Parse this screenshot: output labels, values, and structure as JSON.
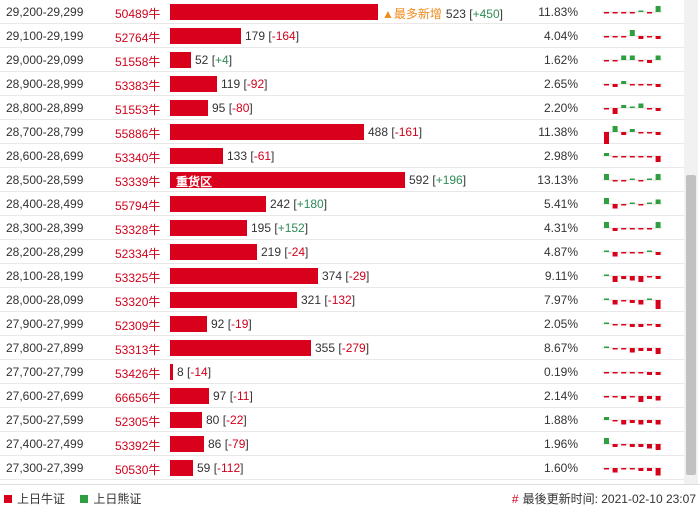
{
  "rows": [
    {
      "range": "29,200-29,299",
      "code": "50489牛",
      "vol": 523,
      "chg": "+450",
      "pct": "11.83%",
      "tag": "▲最多新增",
      "spark": [
        0,
        0,
        0,
        -1,
        1,
        -1,
        4
      ]
    },
    {
      "range": "29,100-29,199",
      "code": "52764牛",
      "vol": 179,
      "chg": "-164",
      "pct": "4.04%",
      "spark": [
        0,
        0,
        -1,
        4,
        -2,
        -1,
        -2
      ]
    },
    {
      "range": "29,000-29,099",
      "code": "51558牛",
      "vol": 52,
      "chg": "+4",
      "pct": "1.62%",
      "spark": [
        0,
        -1,
        3,
        3,
        0,
        -2,
        3
      ]
    },
    {
      "range": "28,900-28,999",
      "code": "53383牛",
      "vol": 119,
      "chg": "-92",
      "pct": "2.65%",
      "spark": [
        0,
        -2,
        2,
        0,
        0,
        0,
        -2
      ]
    },
    {
      "range": "28,800-28,899",
      "code": "51553牛",
      "vol": 95,
      "chg": "-80",
      "pct": "2.20%",
      "spark": [
        0,
        -4,
        2,
        1,
        3,
        0,
        -2
      ]
    },
    {
      "range": "28,700-28,799",
      "code": "55886牛",
      "vol": 488,
      "chg": "-161",
      "pct": "11.38%",
      "spark": [
        -8,
        4,
        -2,
        2,
        0,
        -1,
        -2
      ]
    },
    {
      "range": "28,600-28,699",
      "code": "53340牛",
      "vol": 133,
      "chg": "-61",
      "pct": "2.98%",
      "spark": [
        2,
        -1,
        0,
        0,
        -1,
        -1,
        -4
      ]
    },
    {
      "range": "28,500-28,599",
      "code": "53339牛",
      "vol": 592,
      "chg": "+196",
      "pct": "13.13%",
      "area": "重货区",
      "spark": [
        4,
        -1,
        0,
        1,
        -1,
        1,
        4
      ]
    },
    {
      "range": "28,400-28,499",
      "code": "55794牛",
      "vol": 242,
      "chg": "+180",
      "pct": "5.41%",
      "spark": [
        4,
        -3,
        0,
        1,
        0,
        1,
        3
      ]
    },
    {
      "range": "28,300-28,399",
      "code": "53328牛",
      "vol": 195,
      "chg": "+152",
      "pct": "4.31%",
      "spark": [
        4,
        -2,
        -1,
        0,
        -1,
        -1,
        4
      ]
    },
    {
      "range": "28,200-28,299",
      "code": "52334牛",
      "vol": 219,
      "chg": "-24",
      "pct": "4.87%",
      "spark": [
        1,
        -3,
        -1,
        -1,
        -1,
        1,
        -2
      ]
    },
    {
      "range": "28,100-28,199",
      "code": "53325牛",
      "vol": 374,
      "chg": "-29",
      "pct": "9.11%",
      "spark": [
        1,
        -4,
        -2,
        -3,
        -4,
        -1,
        -2
      ]
    },
    {
      "range": "28,000-28,099",
      "code": "53320牛",
      "vol": 321,
      "chg": "-132",
      "pct": "7.97%",
      "spark": [
        1,
        -3,
        -1,
        -2,
        -3,
        1,
        -6
      ]
    },
    {
      "range": "27,900-27,999",
      "code": "52309牛",
      "vol": 92,
      "chg": "-19",
      "pct": "2.05%",
      "spark": [
        1,
        -1,
        -1,
        -2,
        -2,
        -1,
        -2
      ]
    },
    {
      "range": "27,800-27,899",
      "code": "53313牛",
      "vol": 355,
      "chg": "-279",
      "pct": "8.67%",
      "spark": [
        1,
        -1,
        -1,
        -3,
        -2,
        -2,
        -4
      ]
    },
    {
      "range": "27,700-27,799",
      "code": "53426牛",
      "vol": 8,
      "chg": "-14",
      "pct": "0.19%",
      "spark": [
        -1,
        -1,
        -1,
        -1,
        -1,
        -2,
        -2
      ]
    },
    {
      "range": "27,600-27,699",
      "code": "66656牛",
      "vol": 97,
      "chg": "-11",
      "pct": "2.14%",
      "spark": [
        -1,
        -1,
        -2,
        -1,
        -4,
        -2,
        -3
      ]
    },
    {
      "range": "27,500-27,599",
      "code": "52305牛",
      "vol": 80,
      "chg": "-22",
      "pct": "1.88%",
      "spark": [
        2,
        -1,
        -3,
        -2,
        -3,
        -2,
        -3
      ]
    },
    {
      "range": "27,400-27,499",
      "code": "53392牛",
      "vol": 86,
      "chg": "-79",
      "pct": "1.96%",
      "spark": [
        4,
        -2,
        -1,
        -2,
        -2,
        -3,
        -4
      ]
    },
    {
      "range": "27,300-27,399",
      "code": "50530牛",
      "vol": 59,
      "chg": "-112",
      "pct": "1.60%",
      "spark": [
        -1,
        -3,
        -1,
        -1,
        -2,
        -2,
        -5
      ]
    }
  ],
  "footer": {
    "bull_label": "上日牛证",
    "bear_label": "上日熊证",
    "update_label": "最後更新时间: 2021-02-10 23:07",
    "hash": "#"
  },
  "colors": {
    "bull": "#d9001b",
    "bear": "#2e9e3e"
  }
}
